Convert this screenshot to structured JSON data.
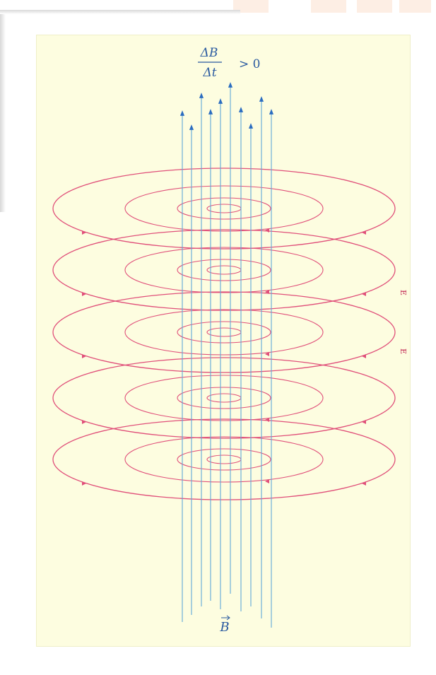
{
  "diagram": {
    "rate_numerator": "ΔB",
    "rate_denominator": "Δt",
    "rate_condition": "> 0",
    "b_vector_label": "B",
    "e_labels": [
      "E",
      "E"
    ]
  },
  "colors": {
    "panel_background": "#fdfde0",
    "field_lines_B": "#5fa8d8",
    "arrow_heads_B": "#2a6cc0",
    "field_lines_E": "#e0507a",
    "text_blue": "#2a5aa0",
    "text_red": "#c02050"
  }
}
